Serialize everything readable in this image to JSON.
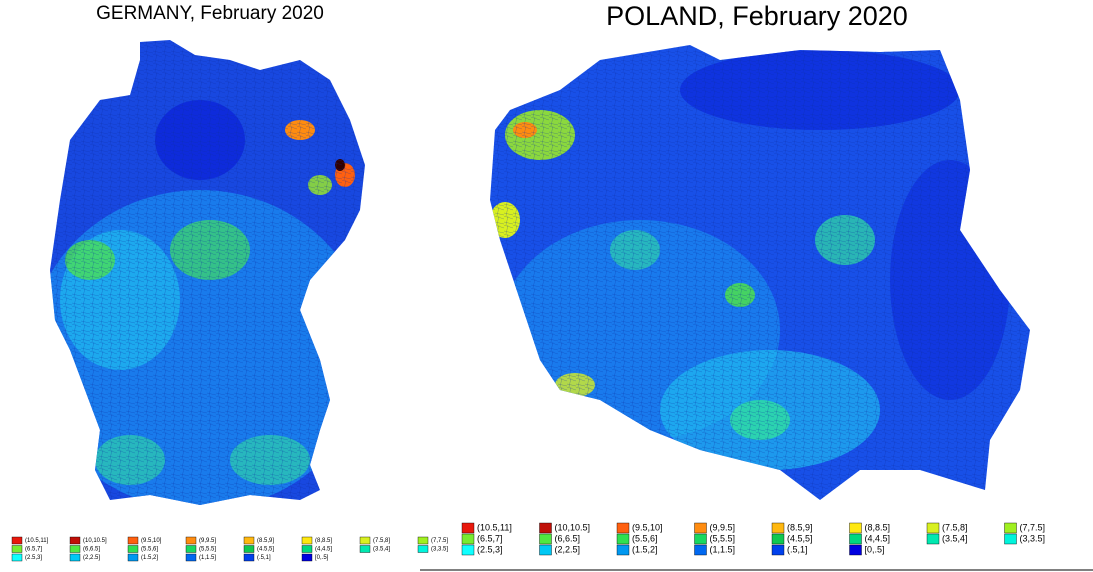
{
  "maps": [
    {
      "title": "GERMANY, February 2020"
    },
    {
      "title": "POLAND, February 2020"
    }
  ],
  "legend": [
    {
      "label": "(10.5,11]",
      "color": "#e8180c"
    },
    {
      "label": "(10,10.5]",
      "color": "#c01008"
    },
    {
      "label": "(9.5,10]",
      "color": "#ff6010"
    },
    {
      "label": "(9,9.5]",
      "color": "#ff8c10"
    },
    {
      "label": "(8.5,9]",
      "color": "#ffb810"
    },
    {
      "label": "(8,8.5]",
      "color": "#ffe810"
    },
    {
      "label": "(7.5,8]",
      "color": "#d8f020"
    },
    {
      "label": "(7,7.5]",
      "color": "#a0f020"
    },
    {
      "label": "(6.5,7]",
      "color": "#78ec30"
    },
    {
      "label": "(6,6.5]",
      "color": "#50e840"
    },
    {
      "label": "(5.5,6]",
      "color": "#30e050"
    },
    {
      "label": "(5,5.5]",
      "color": "#18d860"
    },
    {
      "label": "(4.5,5]",
      "color": "#10c850"
    },
    {
      "label": "(4,4.5]",
      "color": "#00d880"
    },
    {
      "label": "(3.5,4]",
      "color": "#00e8b0"
    },
    {
      "label": "(3,3.5]",
      "color": "#00f4dc"
    },
    {
      "label": "(2.5,3]",
      "color": "#10ffff"
    },
    {
      "label": "(2,2.5]",
      "color": "#00c8f4"
    },
    {
      "label": "(1.5,2]",
      "color": "#0098f0"
    },
    {
      "label": "(1,1.5]",
      "color": "#0068f0"
    },
    {
      "label": "(.5,1]",
      "color": "#0040ec"
    },
    {
      "label": "[0,.5]",
      "color": "#0000e0"
    }
  ]
}
